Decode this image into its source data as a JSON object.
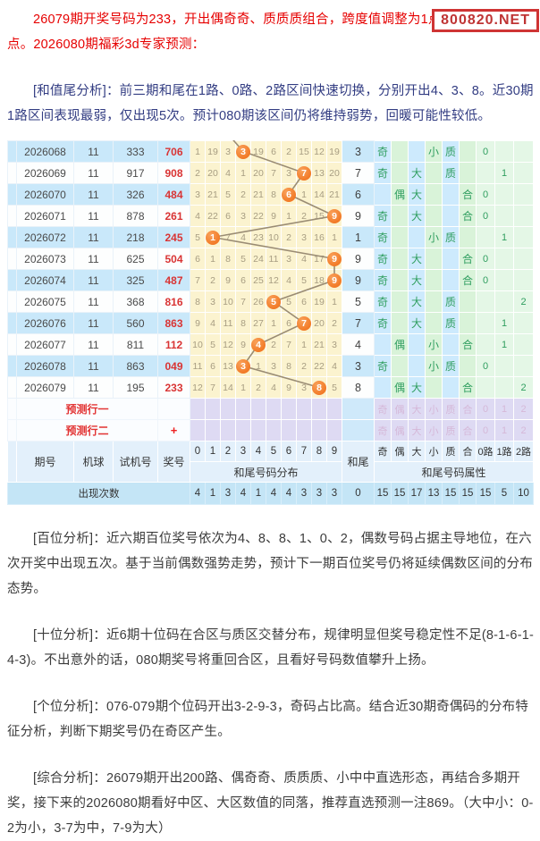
{
  "badge": "800820.NET",
  "intro": "26079期开奖号码为233，开出偶奇奇、质质质组合，跨度值调整为1点，和值低开8点。2026080期福彩3d专家预测：",
  "analysis": [
    "[和值尾分析]：前三期和尾在1路、0路、2路区间快速切换，分别开出4、3、8。近30期1路区间表现最弱，仅出现5次。预计080期该区间仍将维持弱势，回暖可能性较低。",
    "[百位分析]：近六期百位奖号依次为4、8、8、1、0、2，偶数号码占据主导地位，在六次开奖中出现五次。基于当前偶数强势走势，预计下一期百位奖号仍将延续偶数区间的分布态势。",
    "[十位分析]：近6期十位码在合区与质区交替分布，规律明显但奖号稳定性不足(8-1-6-1-4-3)。不出意外的话，080期奖号将重回合区，且看好号码数值攀升上扬。",
    "[个位分析]：076-079期个位码开出3-2-9-3，奇码占比高。结合近30期奇偶码的分布特征分析，判断下期奖号仍在奇区产生。",
    "[综合分析]：26079期开出200路、偶奇奇、质质质、小中中直选形态，再结合多期开奖，接下来的2026080期看好中区、大区数值的同落，推荐直选预测一注869。（大中小：0-2为小，3-7为中，7-9为大）"
  ],
  "chart": {
    "type": "table",
    "headers": {
      "issue": "期号",
      "machine": "机球",
      "test": "试机号",
      "prize": "奖号",
      "tail": "和尾",
      "digit_labels": [
        "0",
        "1",
        "2",
        "3",
        "4",
        "5",
        "6",
        "7",
        "8",
        "9"
      ],
      "attr_labels": [
        "奇",
        "偶",
        "大",
        "小",
        "质",
        "合",
        "0路",
        "1路",
        "2路"
      ],
      "attr_faint": [
        "奇",
        "偶",
        "大",
        "小",
        "质",
        "合",
        "0",
        "1",
        "2"
      ],
      "dist_group_label": "和尾号码分布",
      "attr_group_label": "和尾号码属性"
    },
    "prediction_rows": [
      {
        "label": "预测行一",
        "plus": ""
      },
      {
        "label": "预测行二",
        "plus": "+"
      }
    ],
    "rows": [
      {
        "issue": "2026068",
        "machine": "11",
        "test": "333",
        "prize": "706",
        "tail": 3,
        "miss": [
          1,
          19,
          3,
          3,
          19,
          6,
          2,
          15,
          12,
          19
        ],
        "odd_even": "奇",
        "size": "小",
        "prime": "质",
        "route": "0"
      },
      {
        "issue": "2026069",
        "machine": "11",
        "test": "917",
        "prize": "908",
        "tail": 7,
        "miss": [
          2,
          20,
          4,
          1,
          20,
          7,
          3,
          7,
          13,
          20
        ],
        "odd_even": "奇",
        "size": "大",
        "prime": "质",
        "route": "1"
      },
      {
        "issue": "2026070",
        "machine": "11",
        "test": "326",
        "prize": "484",
        "tail": 6,
        "miss": [
          3,
          21,
          5,
          2,
          21,
          8,
          6,
          1,
          14,
          21
        ],
        "odd_even": "偶",
        "size": "大",
        "prime": "合",
        "route": "0"
      },
      {
        "issue": "2026071",
        "machine": "11",
        "test": "878",
        "prize": "261",
        "tail": 9,
        "miss": [
          4,
          22,
          6,
          3,
          22,
          9,
          1,
          2,
          15,
          9
        ],
        "odd_even": "奇",
        "size": "大",
        "prime": "合",
        "route": "0"
      },
      {
        "issue": "2026072",
        "machine": "11",
        "test": "218",
        "prize": "245",
        "tail": 1,
        "miss": [
          5,
          1,
          7,
          4,
          23,
          10,
          2,
          3,
          16,
          1
        ],
        "odd_even": "奇",
        "size": "小",
        "prime": "质",
        "route": "1"
      },
      {
        "issue": "2026073",
        "machine": "11",
        "test": "625",
        "prize": "504",
        "tail": 9,
        "miss": [
          6,
          1,
          8,
          5,
          24,
          11,
          3,
          4,
          17,
          9
        ],
        "odd_even": "奇",
        "size": "大",
        "prime": "合",
        "route": "0"
      },
      {
        "issue": "2026074",
        "machine": "11",
        "test": "325",
        "prize": "487",
        "tail": 9,
        "miss": [
          7,
          2,
          9,
          6,
          25,
          12,
          4,
          5,
          18,
          9
        ],
        "odd_even": "奇",
        "size": "大",
        "prime": "合",
        "route": "0"
      },
      {
        "issue": "2026075",
        "machine": "11",
        "test": "368",
        "prize": "816",
        "tail": 5,
        "miss": [
          8,
          3,
          10,
          7,
          26,
          5,
          5,
          6,
          19,
          1
        ],
        "odd_even": "奇",
        "size": "大",
        "prime": "质",
        "route": "2"
      },
      {
        "issue": "2026076",
        "machine": "11",
        "test": "560",
        "prize": "863",
        "tail": 7,
        "miss": [
          9,
          4,
          11,
          8,
          27,
          1,
          6,
          7,
          20,
          2
        ],
        "odd_even": "奇",
        "size": "大",
        "prime": "质",
        "route": "1"
      },
      {
        "issue": "2026077",
        "machine": "11",
        "test": "811",
        "prize": "112",
        "tail": 4,
        "miss": [
          10,
          5,
          12,
          9,
          4,
          2,
          7,
          1,
          21,
          3
        ],
        "odd_even": "偶",
        "size": "小",
        "prime": "合",
        "route": "1"
      },
      {
        "issue": "2026078",
        "machine": "11",
        "test": "863",
        "prize": "049",
        "tail": 3,
        "miss": [
          11,
          6,
          13,
          3,
          1,
          3,
          8,
          2,
          22,
          4
        ],
        "odd_even": "奇",
        "size": "小",
        "prime": "质",
        "route": "0"
      },
      {
        "issue": "2026079",
        "machine": "11",
        "test": "195",
        "prize": "233",
        "tail": 8,
        "miss": [
          12,
          7,
          14,
          1,
          2,
          4,
          9,
          3,
          8,
          5
        ],
        "odd_even": "偶",
        "size": "大",
        "prime": "合",
        "route": "2"
      }
    ],
    "counts": {
      "label": "出现次数",
      "digits": [
        4,
        1,
        3,
        4,
        1,
        4,
        4,
        3,
        3,
        3
      ],
      "tail": "0",
      "attrs": [
        15,
        15,
        17,
        13,
        15,
        15,
        15,
        5,
        10
      ]
    },
    "colors": {
      "ball_orange": "#ef6a12",
      "trend_line": "#9a8c74",
      "grid_yellow": "#fbf3cf",
      "row_blue": "#c9e8fa",
      "lavender": "#dedaf3",
      "attr_blue": "#cdeafd",
      "attr_green": "#d9f3d9",
      "red_text": "#e60000",
      "navy_text": "#323c82"
    }
  }
}
